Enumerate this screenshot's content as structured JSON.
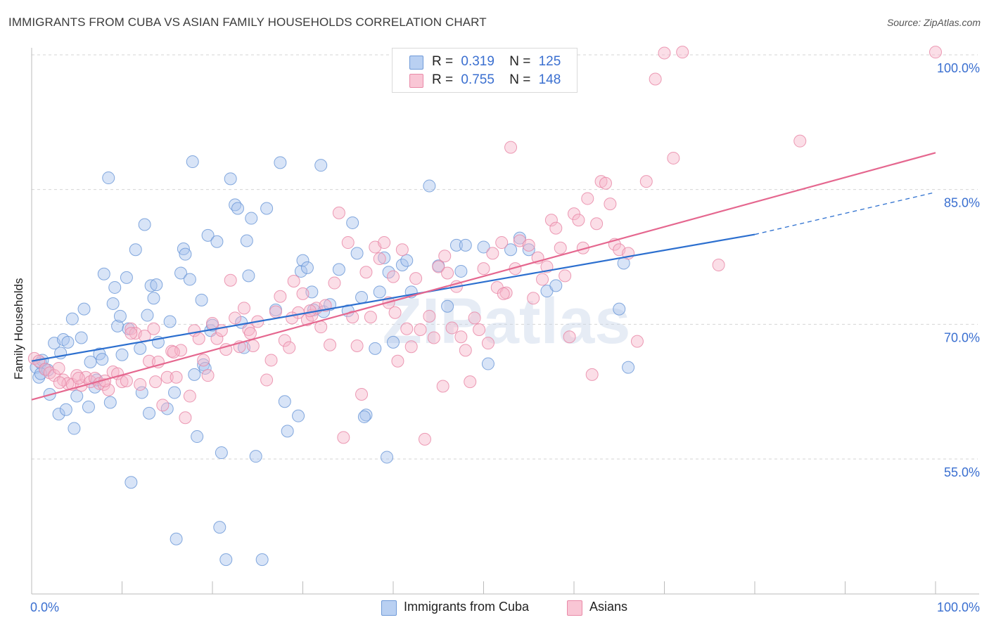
{
  "header": {
    "title": "IMMIGRANTS FROM CUBA VS ASIAN FAMILY HOUSEHOLDS CORRELATION CHART",
    "source": "Source: ZipAtlas.com"
  },
  "watermark": "ZIPatlas",
  "legend": {
    "rows": [
      {
        "r_label": "R =",
        "r_value": "0.319",
        "n_label": "N =",
        "n_value": "125"
      },
      {
        "r_label": "R =",
        "r_value": "0.755",
        "n_label": "N =",
        "n_value": "148"
      }
    ]
  },
  "bottom_legend": [
    {
      "label": "Immigrants from Cuba"
    },
    {
      "label": "Asians"
    }
  ],
  "chart_data": {
    "type": "scatter",
    "xlabel": "",
    "ylabel": "Family Households",
    "xlim": [
      0,
      100
    ],
    "ylim": [
      40,
      102
    ],
    "x_tick_labels": [
      "0.0%",
      "100.0%"
    ],
    "y_tick_labels": [
      "55.0%",
      "70.0%",
      "85.0%",
      "100.0%"
    ],
    "y_tick_values": [
      55,
      70,
      85,
      100
    ],
    "grid": "horizontal dashed",
    "colors": {
      "cuba_fill": "#a9c4ee",
      "cuba_stroke": "#6f9ad8",
      "cuba_line": "#2c6fcf",
      "asian_fill": "#f6b6c9",
      "asian_stroke": "#e98aa8",
      "asian_line": "#e5678f",
      "tick_label": "#3a6fd0"
    },
    "series": [
      {
        "name": "Immigrants from Cuba",
        "regression": {
          "x0": 0,
          "y0": 65.9,
          "x1": 80,
          "y1": 80.0,
          "dash_to_x": 100,
          "dash_to_y": 84.7
        },
        "points": [
          [
            0.5,
            65.2
          ],
          [
            0.8,
            64.1
          ],
          [
            1.0,
            65.7
          ],
          [
            1.2,
            66.0
          ],
          [
            1.5,
            65.0
          ],
          [
            1.8,
            64.9
          ],
          [
            2.0,
            62.2
          ],
          [
            2.5,
            67.9
          ],
          [
            3.0,
            60.0
          ],
          [
            3.2,
            66.8
          ],
          [
            3.5,
            68.3
          ],
          [
            3.8,
            60.5
          ],
          [
            4.0,
            68.0
          ],
          [
            4.5,
            70.6
          ],
          [
            4.7,
            58.4
          ],
          [
            5.0,
            62.0
          ],
          [
            5.5,
            68.5
          ],
          [
            5.8,
            71.7
          ],
          [
            6.3,
            60.8
          ],
          [
            6.5,
            65.8
          ],
          [
            7.0,
            63.0
          ],
          [
            7.5,
            66.7
          ],
          [
            7.8,
            66.1
          ],
          [
            8.0,
            75.6
          ],
          [
            8.5,
            86.3
          ],
          [
            8.7,
            61.3
          ],
          [
            9.0,
            72.3
          ],
          [
            9.2,
            74.1
          ],
          [
            9.5,
            69.8
          ],
          [
            9.8,
            70.9
          ],
          [
            10.0,
            66.6
          ],
          [
            10.5,
            75.2
          ],
          [
            10.7,
            69.5
          ],
          [
            11.0,
            52.4
          ],
          [
            11.5,
            78.3
          ],
          [
            12.0,
            67.3
          ],
          [
            12.2,
            62.4
          ],
          [
            12.5,
            81.1
          ],
          [
            12.8,
            71.0
          ],
          [
            13.0,
            60.1
          ],
          [
            13.2,
            74.3
          ],
          [
            13.5,
            72.9
          ],
          [
            13.8,
            74.4
          ],
          [
            14.0,
            68.0
          ],
          [
            15.0,
            60.6
          ],
          [
            15.3,
            70.3
          ],
          [
            15.8,
            62.4
          ],
          [
            16.0,
            46.1
          ],
          [
            16.5,
            75.7
          ],
          [
            16.8,
            78.4
          ],
          [
            17.0,
            77.8
          ],
          [
            17.5,
            75.0
          ],
          [
            17.8,
            88.1
          ],
          [
            18.0,
            64.4
          ],
          [
            18.3,
            57.5
          ],
          [
            18.8,
            72.7
          ],
          [
            19.0,
            65.5
          ],
          [
            19.5,
            79.9
          ],
          [
            19.8,
            69.3
          ],
          [
            20.0,
            69.9
          ],
          [
            20.5,
            79.2
          ],
          [
            20.8,
            47.4
          ],
          [
            21.0,
            55.7
          ],
          [
            21.5,
            43.8
          ],
          [
            22.0,
            86.2
          ],
          [
            22.5,
            83.3
          ],
          [
            22.8,
            82.9
          ],
          [
            23.2,
            70.2
          ],
          [
            23.5,
            67.4
          ],
          [
            23.8,
            79.3
          ],
          [
            24.0,
            75.4
          ],
          [
            24.3,
            81.8
          ],
          [
            24.8,
            55.3
          ],
          [
            25.5,
            43.8
          ],
          [
            26.0,
            82.9
          ],
          [
            27.0,
            71.6
          ],
          [
            27.5,
            88.0
          ],
          [
            28.0,
            61.4
          ],
          [
            28.3,
            58.1
          ],
          [
            29.5,
            59.8
          ],
          [
            29.8,
            75.9
          ],
          [
            30.0,
            77.1
          ],
          [
            30.5,
            76.3
          ],
          [
            31.0,
            73.6
          ],
          [
            31.2,
            71.6
          ],
          [
            32.0,
            87.7
          ],
          [
            32.3,
            71.4
          ],
          [
            33.0,
            72.2
          ],
          [
            34.0,
            76.1
          ],
          [
            35.0,
            71.5
          ],
          [
            35.5,
            81.3
          ],
          [
            36.0,
            77.9
          ],
          [
            36.5,
            73.0
          ],
          [
            37.0,
            59.9
          ],
          [
            38.0,
            67.3
          ],
          [
            38.5,
            73.6
          ],
          [
            39.0,
            77.4
          ],
          [
            39.3,
            55.2
          ],
          [
            39.5,
            75.8
          ],
          [
            40.0,
            68.0
          ],
          [
            41.0,
            76.6
          ],
          [
            41.5,
            77.1
          ],
          [
            42.0,
            73.6
          ],
          [
            44.0,
            85.4
          ],
          [
            45.0,
            76.5
          ],
          [
            46.0,
            72.0
          ],
          [
            47.0,
            78.8
          ],
          [
            47.5,
            75.9
          ],
          [
            48.0,
            78.8
          ],
          [
            50.0,
            78.6
          ],
          [
            50.5,
            65.6
          ],
          [
            53.0,
            78.3
          ],
          [
            54.0,
            79.6
          ],
          [
            55.0,
            78.3
          ],
          [
            57.0,
            73.7
          ],
          [
            58.0,
            74.3
          ],
          [
            65.0,
            71.7
          ],
          [
            65.5,
            76.8
          ],
          [
            66.0,
            65.2
          ],
          [
            36.8,
            59.7
          ],
          [
            19.2,
            65.1
          ],
          [
            7.2,
            63.8
          ],
          [
            1.0,
            64.5
          ]
        ]
      },
      {
        "name": "Asians",
        "regression": {
          "x0": 0,
          "y0": 61.6,
          "x1": 100,
          "y1": 89.1
        },
        "points": [
          [
            0.3,
            66.2
          ],
          [
            0.8,
            65.9
          ],
          [
            1.5,
            65.0
          ],
          [
            2.0,
            64.6
          ],
          [
            2.5,
            64.3
          ],
          [
            3.0,
            65.1
          ],
          [
            3.5,
            63.8
          ],
          [
            4.0,
            63.4
          ],
          [
            4.5,
            63.3
          ],
          [
            5.0,
            64.3
          ],
          [
            5.5,
            63.2
          ],
          [
            6.0,
            64.1
          ],
          [
            6.5,
            63.6
          ],
          [
            7.0,
            64.0
          ],
          [
            7.5,
            63.4
          ],
          [
            8.0,
            63.3
          ],
          [
            8.5,
            62.7
          ],
          [
            9.0,
            64.7
          ],
          [
            9.5,
            64.5
          ],
          [
            10.0,
            63.6
          ],
          [
            10.5,
            63.7
          ],
          [
            11.0,
            69.5
          ],
          [
            11.5,
            69.0
          ],
          [
            12.0,
            63.3
          ],
          [
            12.5,
            68.7
          ],
          [
            13.0,
            65.9
          ],
          [
            13.5,
            69.5
          ],
          [
            14.0,
            65.8
          ],
          [
            14.5,
            61.0
          ],
          [
            15.0,
            64.1
          ],
          [
            15.5,
            67.0
          ],
          [
            16.0,
            64.1
          ],
          [
            16.5,
            67.1
          ],
          [
            17.0,
            59.6
          ],
          [
            17.5,
            62.0
          ],
          [
            18.0,
            69.3
          ],
          [
            18.5,
            68.4
          ],
          [
            19.0,
            66.0
          ],
          [
            19.5,
            64.3
          ],
          [
            20.0,
            70.1
          ],
          [
            20.5,
            68.4
          ],
          [
            21.0,
            69.3
          ],
          [
            21.5,
            67.2
          ],
          [
            22.0,
            74.9
          ],
          [
            22.5,
            70.7
          ],
          [
            23.0,
            67.5
          ],
          [
            23.5,
            71.8
          ],
          [
            24.0,
            69.4
          ],
          [
            24.5,
            67.6
          ],
          [
            25.0,
            70.3
          ],
          [
            26.0,
            63.8
          ],
          [
            26.5,
            66.0
          ],
          [
            27.0,
            71.4
          ],
          [
            27.5,
            73.1
          ],
          [
            28.0,
            68.2
          ],
          [
            28.5,
            67.4
          ],
          [
            29.0,
            74.8
          ],
          [
            29.5,
            71.3
          ],
          [
            30.0,
            73.4
          ],
          [
            30.5,
            70.5
          ],
          [
            31.0,
            71.0
          ],
          [
            31.5,
            71.8
          ],
          [
            32.0,
            69.7
          ],
          [
            32.5,
            72.1
          ],
          [
            33.0,
            67.7
          ],
          [
            33.5,
            74.6
          ],
          [
            34.0,
            82.4
          ],
          [
            34.5,
            57.4
          ],
          [
            35.0,
            79.1
          ],
          [
            35.5,
            70.8
          ],
          [
            36.0,
            67.6
          ],
          [
            36.5,
            62.2
          ],
          [
            37.0,
            75.8
          ],
          [
            37.5,
            70.8
          ],
          [
            38.0,
            78.6
          ],
          [
            38.5,
            77.3
          ],
          [
            39.0,
            79.1
          ],
          [
            39.5,
            72.4
          ],
          [
            40.0,
            75.3
          ],
          [
            40.5,
            65.9
          ],
          [
            41.0,
            78.3
          ],
          [
            41.5,
            69.5
          ],
          [
            42.0,
            67.5
          ],
          [
            42.5,
            75.1
          ],
          [
            43.0,
            69.4
          ],
          [
            43.5,
            57.2
          ],
          [
            44.0,
            70.9
          ],
          [
            44.5,
            68.5
          ],
          [
            45.0,
            76.4
          ],
          [
            45.5,
            63.1
          ],
          [
            46.0,
            75.7
          ],
          [
            46.5,
            69.6
          ],
          [
            47.0,
            74.2
          ],
          [
            47.5,
            68.6
          ],
          [
            48.0,
            67.1
          ],
          [
            48.5,
            63.6
          ],
          [
            49.0,
            70.7
          ],
          [
            49.5,
            69.4
          ],
          [
            50.0,
            76.2
          ],
          [
            50.5,
            67.9
          ],
          [
            51.0,
            77.9
          ],
          [
            51.5,
            74.1
          ],
          [
            52.0,
            79.1
          ],
          [
            52.5,
            73.5
          ],
          [
            53.0,
            89.7
          ],
          [
            53.5,
            76.2
          ],
          [
            54.0,
            79.3
          ],
          [
            55.0,
            78.8
          ],
          [
            55.5,
            72.9
          ],
          [
            56.0,
            77.4
          ],
          [
            56.5,
            75.0
          ],
          [
            57.0,
            76.4
          ],
          [
            57.5,
            81.6
          ],
          [
            58.0,
            80.7
          ],
          [
            58.5,
            78.5
          ],
          [
            59.0,
            75.4
          ],
          [
            59.5,
            68.6
          ],
          [
            60.0,
            82.3
          ],
          [
            60.5,
            81.6
          ],
          [
            61.0,
            78.5
          ],
          [
            61.5,
            84.0
          ],
          [
            62.0,
            64.4
          ],
          [
            62.5,
            81.2
          ],
          [
            63.0,
            85.9
          ],
          [
            63.5,
            85.7
          ],
          [
            64.0,
            83.4
          ],
          [
            64.5,
            78.9
          ],
          [
            65.0,
            78.3
          ],
          [
            66.0,
            77.9
          ],
          [
            67.0,
            68.1
          ],
          [
            68.0,
            85.9
          ],
          [
            69.0,
            97.3
          ],
          [
            70.0,
            100.2
          ],
          [
            71.0,
            88.5
          ],
          [
            72.0,
            100.3
          ],
          [
            76.0,
            76.6
          ],
          [
            85.0,
            90.4
          ],
          [
            100.0,
            100.3
          ],
          [
            11.0,
            69.0
          ],
          [
            5.2,
            64.0
          ],
          [
            8.1,
            63.7
          ],
          [
            15.7,
            66.9
          ],
          [
            13.7,
            63.6
          ],
          [
            3.1,
            63.5
          ],
          [
            24.2,
            69.0
          ],
          [
            28.8,
            70.7
          ],
          [
            45.7,
            77.6
          ],
          [
            52.2,
            73.4
          ],
          [
            30.8,
            71.5
          ],
          [
            40.2,
            71.3
          ]
        ]
      }
    ]
  }
}
